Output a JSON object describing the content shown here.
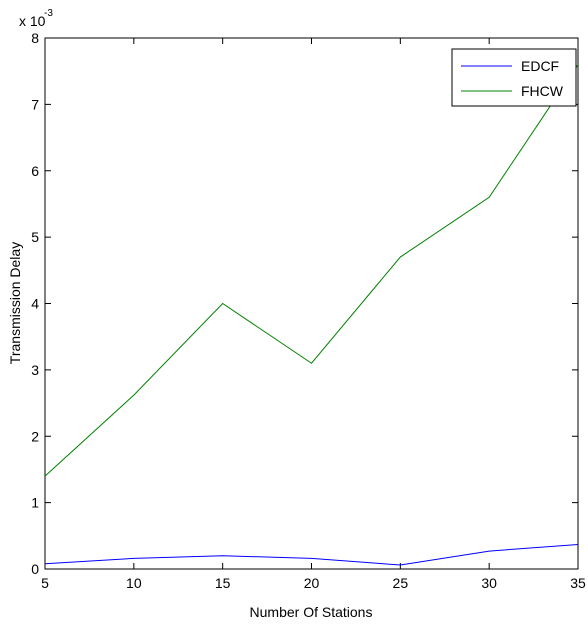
{
  "chart_data": {
    "type": "line",
    "xlabel": "Number Of Stations",
    "ylabel": "Transmission Delay",
    "y_exponent_base": "x 10",
    "y_exponent_power": "-3",
    "x": [
      5,
      10,
      15,
      20,
      25,
      30,
      35
    ],
    "xlim": [
      5,
      35
    ],
    "ylim": [
      0,
      8
    ],
    "x_ticks": [
      "5",
      "10",
      "15",
      "20",
      "25",
      "30",
      "35"
    ],
    "y_ticks": [
      "0",
      "1",
      "2",
      "3",
      "4",
      "5",
      "6",
      "7",
      "8"
    ],
    "grid": false,
    "legend_position": "top-right",
    "series": [
      {
        "name": "EDCF",
        "color": "#0000ff",
        "values": [
          0.08,
          0.16,
          0.2,
          0.16,
          0.06,
          0.27,
          0.37
        ]
      },
      {
        "name": "FHCW",
        "color": "#008000",
        "values": [
          1.4,
          2.62,
          4.0,
          3.1,
          4.7,
          5.6,
          7.6
        ]
      }
    ]
  }
}
